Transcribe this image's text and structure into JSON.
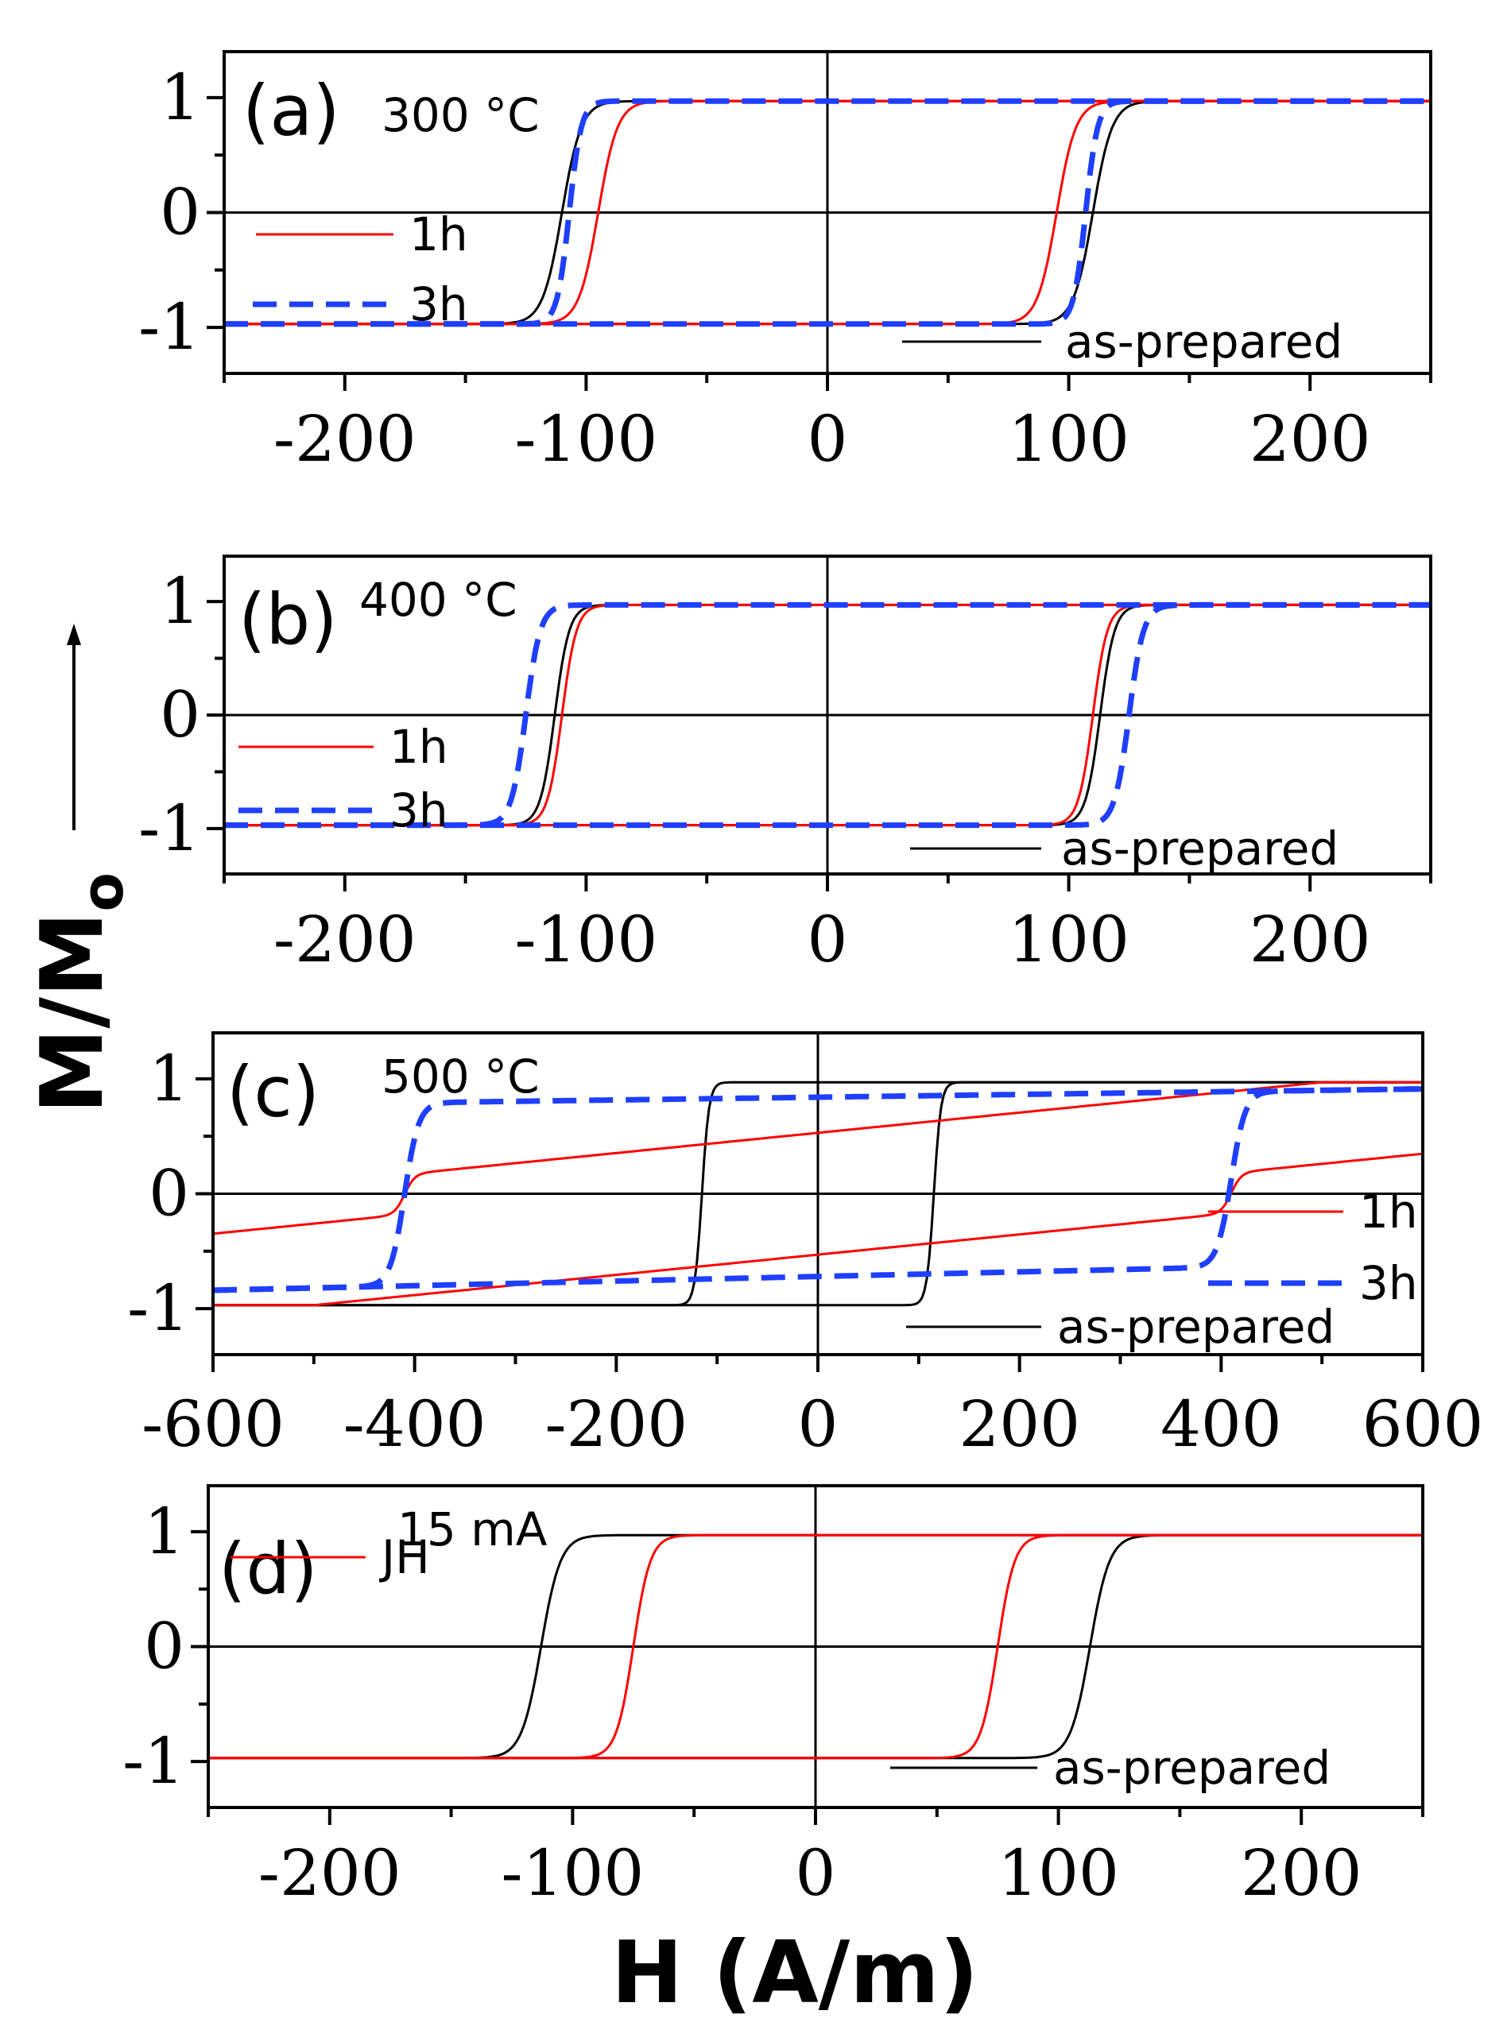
{
  "chart_data": [
    {
      "type": "line",
      "panel": "(a)",
      "condition": "300 °C",
      "xlim": [
        -250,
        250
      ],
      "ylim": [
        -1.4,
        1.4
      ],
      "xticks": [
        "-200",
        "-100",
        "0",
        "100",
        "200"
      ],
      "xtick_values": [
        -200,
        -100,
        0,
        100,
        200
      ],
      "yticks": [
        "1",
        "0",
        "-1"
      ],
      "ytick_values": [
        1,
        0,
        -1
      ],
      "series": [
        {
          "name": "as-prepared",
          "color": "#000000",
          "dash": false,
          "kind": "loop",
          "hc": 110,
          "w": 8,
          "hk": 145
        },
        {
          "name": "1h",
          "color": "#ff0000",
          "dash": false,
          "kind": "loop",
          "hc": 95,
          "w": 8,
          "hk": 130
        },
        {
          "name": "3h",
          "color": "#1f3fff",
          "dash": true,
          "kind": "loop",
          "hc": 107,
          "w": 5,
          "hk": 130
        }
      ]
    },
    {
      "type": "line",
      "panel": "(b)",
      "condition": "400 °C",
      "xlim": [
        -250,
        250
      ],
      "ylim": [
        -1.4,
        1.4
      ],
      "xticks": [
        "-200",
        "-100",
        "0",
        "100",
        "200"
      ],
      "xtick_values": [
        -200,
        -100,
        0,
        100,
        200
      ],
      "yticks": [
        "1",
        "0",
        "-1"
      ],
      "ytick_values": [
        1,
        0,
        -1
      ],
      "series": [
        {
          "name": "as-prepared",
          "color": "#000000",
          "dash": false,
          "kind": "loop",
          "hc": 113,
          "w": 6,
          "hk": 150
        },
        {
          "name": "1h",
          "color": "#ff0000",
          "dash": false,
          "kind": "loop",
          "hc": 110,
          "w": 6,
          "hk": 145
        },
        {
          "name": "3h",
          "color": "#1f3fff",
          "dash": true,
          "kind": "loop",
          "hc": 125,
          "w": 6,
          "hk": 160
        }
      ]
    },
    {
      "type": "line",
      "panel": "(c)",
      "condition": "500 °C",
      "xlim": [
        -600,
        600
      ],
      "ylim": [
        -1.4,
        1.4
      ],
      "xticks": [
        "-600",
        "-400",
        "-200",
        "0",
        "200",
        "400",
        "600"
      ],
      "xtick_values": [
        -600,
        -400,
        -200,
        0,
        200,
        400,
        600
      ],
      "yticks": [
        "1",
        "0",
        "-1"
      ],
      "ytick_values": [
        1,
        0,
        -1
      ],
      "series": [
        {
          "name": "as-prepared",
          "color": "#000000",
          "dash": false,
          "kind": "loop",
          "hc": 115,
          "w": 7,
          "hk": 170
        },
        {
          "name": "1h",
          "color": "#ff0000",
          "dash": false,
          "kind": "skew",
          "hc": 410,
          "m0": 0.53,
          "slope": 0.00088,
          "sat": 0.97
        },
        {
          "name": "3h",
          "color": "#1f3fff",
          "dash": true,
          "kind": "sheared",
          "hc": 410,
          "m0": 0.84,
          "slope": 0.0002,
          "sat": 0.96
        }
      ]
    },
    {
      "type": "line",
      "panel": "(d)",
      "condition": "15 mA",
      "xlim": [
        -250,
        250
      ],
      "ylim": [
        -1.4,
        1.4
      ],
      "xticks": [
        "-200",
        "-100",
        "0",
        "100",
        "200"
      ],
      "xtick_values": [
        -200,
        -100,
        0,
        100,
        200
      ],
      "yticks": [
        "1",
        "0",
        "-1"
      ],
      "ytick_values": [
        1,
        0,
        -1
      ],
      "series": [
        {
          "name": "as-prepared",
          "color": "#000000",
          "dash": false,
          "kind": "loop",
          "hc": 113,
          "w": 8,
          "hk": 150
        },
        {
          "name": "JH",
          "color": "#ff0000",
          "dash": false,
          "kind": "loop",
          "hc": 75,
          "w": 7,
          "hk": 110
        }
      ]
    }
  ],
  "ylabel": "M/M",
  "ylabel_subscript": "o",
  "xlabel": "H (A/m)"
}
